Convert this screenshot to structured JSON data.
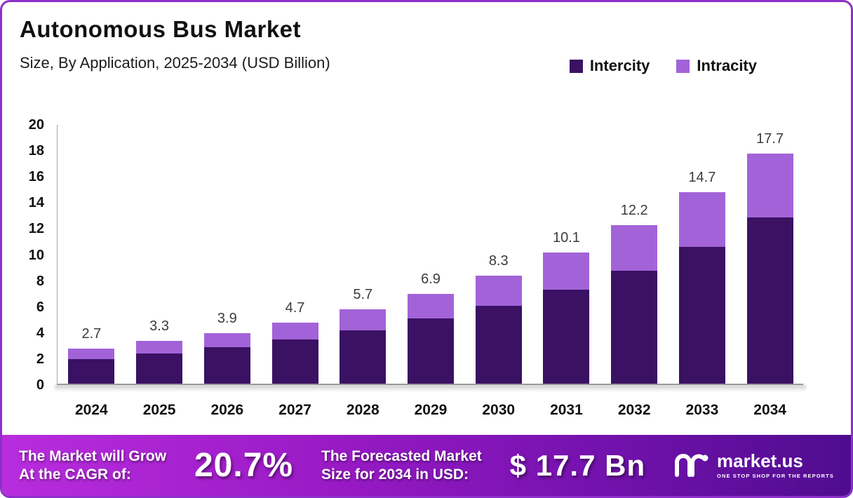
{
  "header": {
    "title": "Autonomous Bus Market",
    "subtitle": "Size, By Application, 2025-2034 (USD Billion)"
  },
  "legend": [
    {
      "label": "Intercity",
      "color": "#3a1163"
    },
    {
      "label": "Intracity",
      "color": "#a263d8"
    }
  ],
  "chart_data": {
    "type": "bar",
    "stacked": true,
    "title": "Autonomous Bus Market Size, By Application, 2025-2034 (USD Billion)",
    "categories": [
      "2024",
      "2025",
      "2026",
      "2027",
      "2028",
      "2029",
      "2030",
      "2031",
      "2032",
      "2033",
      "2034"
    ],
    "series": [
      {
        "name": "Intercity",
        "color": "#3a1163",
        "values": [
          1.9,
          2.3,
          2.8,
          3.4,
          4.1,
          5.0,
          6.0,
          7.2,
          8.7,
          10.5,
          12.8
        ]
      },
      {
        "name": "Intracity",
        "color": "#a263d8",
        "values": [
          0.8,
          1.0,
          1.1,
          1.3,
          1.6,
          1.9,
          2.3,
          2.9,
          3.5,
          4.2,
          4.9
        ]
      }
    ],
    "totals": [
      2.7,
      3.3,
      3.9,
      4.7,
      5.7,
      6.9,
      8.3,
      10.1,
      12.2,
      14.7,
      17.7
    ],
    "total_labels": [
      "2.7",
      "3.3",
      "3.9",
      "4.7",
      "5.7",
      "6.9",
      "8.3",
      "10.1",
      "12.2",
      "14.7",
      "17.7"
    ],
    "ylabel": "",
    "xlabel": "",
    "ylim": [
      0,
      20
    ],
    "yticks": [
      0,
      2,
      4,
      6,
      8,
      10,
      12,
      14,
      16,
      18,
      20
    ],
    "grid": false,
    "legend_position": "top-right"
  },
  "footer": {
    "cagr_caption_line1": "The Market will Grow",
    "cagr_caption_line2": "At the CAGR of:",
    "cagr_value": "20.7%",
    "forecast_caption_line1": "The Forecasted Market",
    "forecast_caption_line2": "Size for 2034 in USD:",
    "forecast_value": "$ 17.7 Bn",
    "brand_name": "market.us",
    "brand_tagline": "ONE STOP SHOP FOR THE REPORTS"
  }
}
